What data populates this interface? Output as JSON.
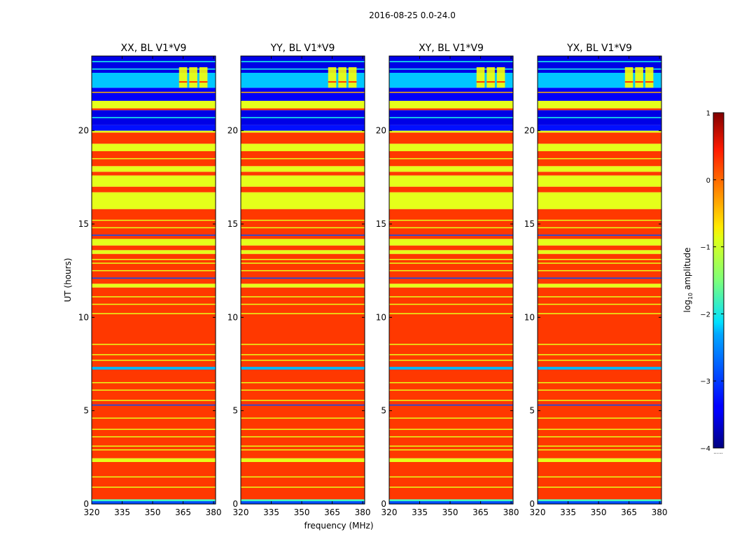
{
  "chart_data": {
    "type": "heatmap",
    "suptitle": "2016-08-25 0.0-24.0",
    "xlabel": "frequency (MHz)",
    "ylabel": "UT (hours)",
    "xlim": [
      320,
      381
    ],
    "ylim": [
      0,
      24
    ],
    "xticks": [
      320,
      335,
      350,
      365,
      380
    ],
    "xtick_labels": [
      "320",
      "335",
      "350",
      "365",
      "380"
    ],
    "yticks": [
      0,
      5,
      10,
      15,
      20
    ],
    "ytick_labels": [
      "0",
      "5",
      "10",
      "15",
      "20"
    ],
    "colormap": "jet",
    "panels": [
      {
        "title": "XX, BL V1*V9"
      },
      {
        "title": "YY, BL V1*V9"
      },
      {
        "title": "XY, BL V1*V9"
      },
      {
        "title": "YX, BL V1*V9"
      }
    ],
    "rfi_bursts_mhz": [
      [
        363,
        367
      ],
      [
        368,
        372
      ],
      [
        373,
        377
      ]
    ],
    "bands": [
      {
        "start": 0,
        "end": 0.15,
        "value": -3.0
      },
      {
        "start": 0.15,
        "end": 0.25,
        "value": -1.8
      },
      {
        "start": 0.25,
        "end": 2.25,
        "value": 0.1
      },
      {
        "start": 2.25,
        "end": 2.45,
        "value": -1.0
      },
      {
        "start": 2.45,
        "end": 7.2,
        "value": 0.1
      },
      {
        "start": 7.2,
        "end": 7.35,
        "value": -2.5
      },
      {
        "start": 7.35,
        "end": 11.6,
        "value": 0.1
      },
      {
        "start": 11.6,
        "end": 11.8,
        "value": -1.0
      },
      {
        "start": 11.8,
        "end": 13.4,
        "value": 0.1
      },
      {
        "start": 13.4,
        "end": 13.6,
        "value": -1.0
      },
      {
        "start": 13.6,
        "end": 13.85,
        "value": 0.1
      },
      {
        "start": 13.85,
        "end": 14.2,
        "value": -1.0
      },
      {
        "start": 14.2,
        "end": 15.8,
        "value": 0.1
      },
      {
        "start": 15.8,
        "end": 16.7,
        "value": -1.0
      },
      {
        "start": 16.7,
        "end": 17.0,
        "value": 0.1
      },
      {
        "start": 17.0,
        "end": 17.6,
        "value": -1.0
      },
      {
        "start": 17.6,
        "end": 17.8,
        "value": 0.1
      },
      {
        "start": 17.8,
        "end": 18.1,
        "value": -1.0
      },
      {
        "start": 18.1,
        "end": 18.9,
        "value": 0.1
      },
      {
        "start": 18.9,
        "end": 19.3,
        "value": -1.0
      },
      {
        "start": 19.3,
        "end": 19.9,
        "value": 0.1
      },
      {
        "start": 19.9,
        "end": 20.0,
        "value": -1.0
      },
      {
        "start": 20.0,
        "end": 20.3,
        "value": -3.3
      },
      {
        "start": 20.3,
        "end": 21.1,
        "value": -3.5
      },
      {
        "start": 21.1,
        "end": 21.2,
        "value": 0.1
      },
      {
        "start": 21.2,
        "end": 21.6,
        "value": -1.0
      },
      {
        "start": 21.6,
        "end": 22.3,
        "value": -3.4
      },
      {
        "start": 22.3,
        "end": 23.1,
        "value": -2.4
      },
      {
        "start": 23.1,
        "end": 24.0,
        "value": -3.5
      }
    ],
    "stripes": [
      {
        "t": 0.9,
        "value": -1.0
      },
      {
        "t": 1.45,
        "value": -1.0
      },
      {
        "t": 2.9,
        "value": -1.0
      },
      {
        "t": 3.1,
        "value": -1.0
      },
      {
        "t": 3.6,
        "value": -1.0
      },
      {
        "t": 4.0,
        "value": -1.0
      },
      {
        "t": 4.6,
        "value": -1.0
      },
      {
        "t": 5.3,
        "value": -3.0
      },
      {
        "t": 5.55,
        "value": -1.0
      },
      {
        "t": 6.1,
        "value": -1.0
      },
      {
        "t": 6.5,
        "value": -1.0
      },
      {
        "t": 7.7,
        "value": -1.0
      },
      {
        "t": 8.0,
        "value": -1.0
      },
      {
        "t": 8.55,
        "value": -1.0
      },
      {
        "t": 10.2,
        "value": -1.0
      },
      {
        "t": 10.7,
        "value": -1.0
      },
      {
        "t": 11.1,
        "value": -1.0
      },
      {
        "t": 12.1,
        "value": -3.0
      },
      {
        "t": 12.5,
        "value": -1.0
      },
      {
        "t": 12.9,
        "value": -1.0
      },
      {
        "t": 13.1,
        "value": -1.0
      },
      {
        "t": 14.4,
        "value": -3.0
      },
      {
        "t": 14.8,
        "value": -1.0
      },
      {
        "t": 15.2,
        "value": -1.0
      },
      {
        "t": 17.3,
        "value": -1.0
      },
      {
        "t": 18.5,
        "value": -1.0
      },
      {
        "t": 20.7,
        "value": -2.0
      },
      {
        "t": 22.05,
        "value": -0.5
      },
      {
        "t": 23.3,
        "value": -2.0
      },
      {
        "t": 23.7,
        "value": -2.0
      }
    ],
    "colorbar": {
      "label": "log10 amplitude",
      "label_base": "log",
      "label_sub": "10",
      "label_rest": " amplitude",
      "min": -4,
      "max": 1,
      "ticks": [
        1,
        0,
        -1,
        -2,
        -3,
        -4
      ],
      "tick_labels": [
        "1",
        "0",
        "−1",
        "−2",
        "−3",
        "−4"
      ],
      "extra_label": "......"
    }
  }
}
